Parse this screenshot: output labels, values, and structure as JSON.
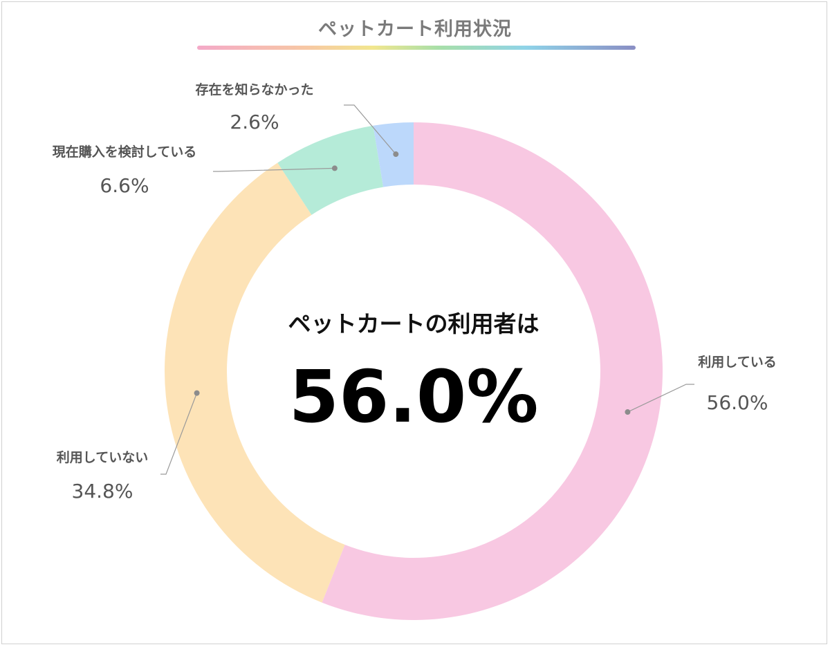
{
  "chart_data": {
    "type": "pie",
    "donut": true,
    "title": "ペットカート利用状況",
    "center_caption": "ペットカートの利用者は",
    "center_value": "56.0%",
    "categories": [
      "利用している",
      "利用していない",
      "現在購入を検討している",
      "存在を知らなかった"
    ],
    "values": [
      56.0,
      34.8,
      6.6,
      2.6
    ],
    "value_labels": [
      "56.0%",
      "34.8%",
      "6.6%",
      "2.6%"
    ],
    "colors": [
      "#f8c8e2",
      "#fde3b7",
      "#b5ebd8",
      "#bcd8fb"
    ]
  }
}
